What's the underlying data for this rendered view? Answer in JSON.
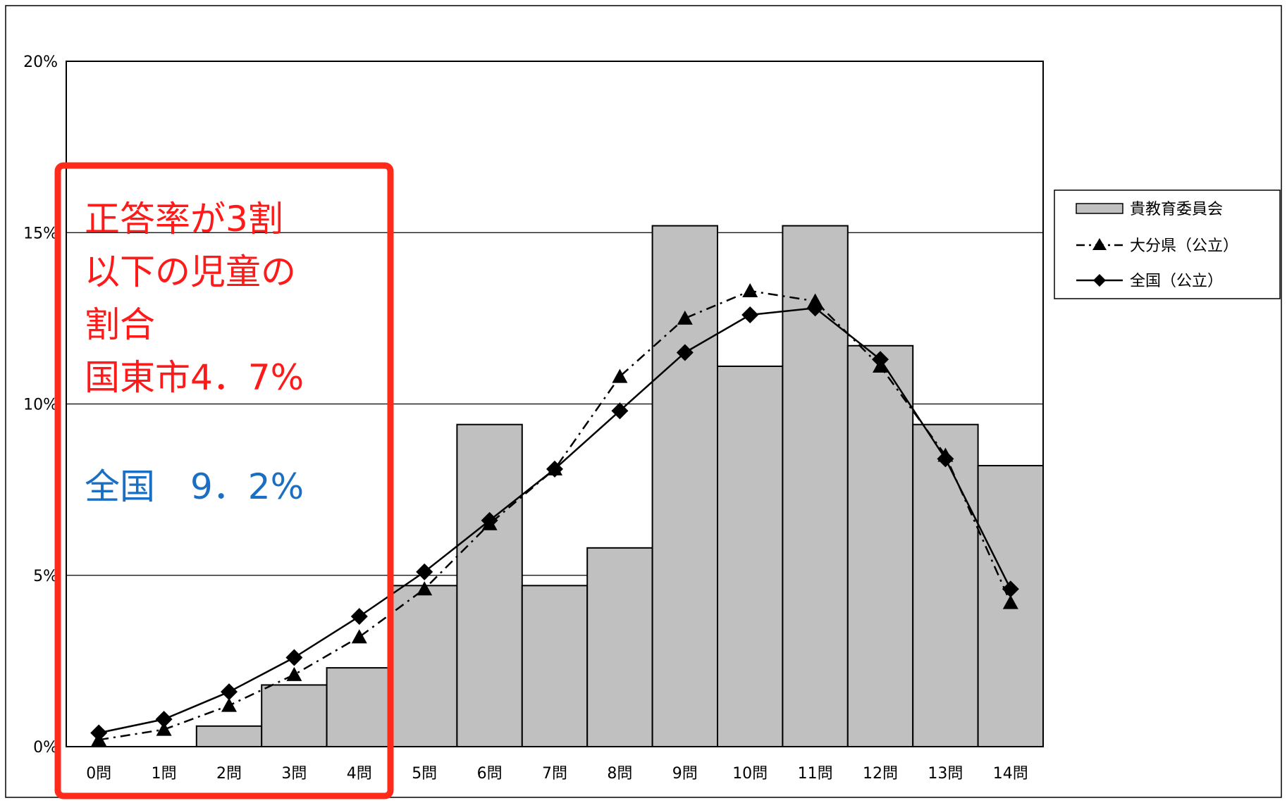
{
  "chart_data": {
    "type": "bar",
    "categories": [
      "0問",
      "1問",
      "2問",
      "3問",
      "4問",
      "5問",
      "6問",
      "7問",
      "8問",
      "9問",
      "10問",
      "11問",
      "12問",
      "13問",
      "14問"
    ],
    "y_ticks": [
      "0%",
      "5%",
      "10%",
      "15%",
      "20%"
    ],
    "ylim": [
      0,
      20
    ],
    "grid": true,
    "legend_position": "right",
    "series": [
      {
        "name": "貴教育委員会",
        "type": "bar",
        "color": "#c0c0c0",
        "values": [
          0.0,
          0.0,
          0.6,
          1.8,
          2.3,
          4.7,
          9.4,
          4.7,
          5.8,
          15.2,
          11.1,
          15.2,
          11.7,
          9.4,
          8.2
        ]
      },
      {
        "name": "大分県（公立）",
        "type": "line",
        "style": "dash-dot",
        "marker": "triangle",
        "color": "#000000",
        "values": [
          0.2,
          0.5,
          1.2,
          2.1,
          3.2,
          4.6,
          6.5,
          8.1,
          10.8,
          12.5,
          13.3,
          13.0,
          11.1,
          8.5,
          4.2
        ]
      },
      {
        "name": "全国（公立）",
        "type": "line",
        "style": "solid",
        "marker": "diamond",
        "color": "#000000",
        "values": [
          0.4,
          0.8,
          1.6,
          2.6,
          3.8,
          5.1,
          6.6,
          8.1,
          9.8,
          11.5,
          12.6,
          12.8,
          11.3,
          8.4,
          4.6
        ]
      }
    ]
  },
  "annotation": {
    "box_color": "#ff2a1a",
    "lines": [
      "正答率が3割",
      "以下の児童の",
      "割合",
      "国東市4．7%"
    ],
    "national_line": "全国　9．2%",
    "local_color": "#ff1a1a",
    "national_color": "#1a6fc4"
  }
}
